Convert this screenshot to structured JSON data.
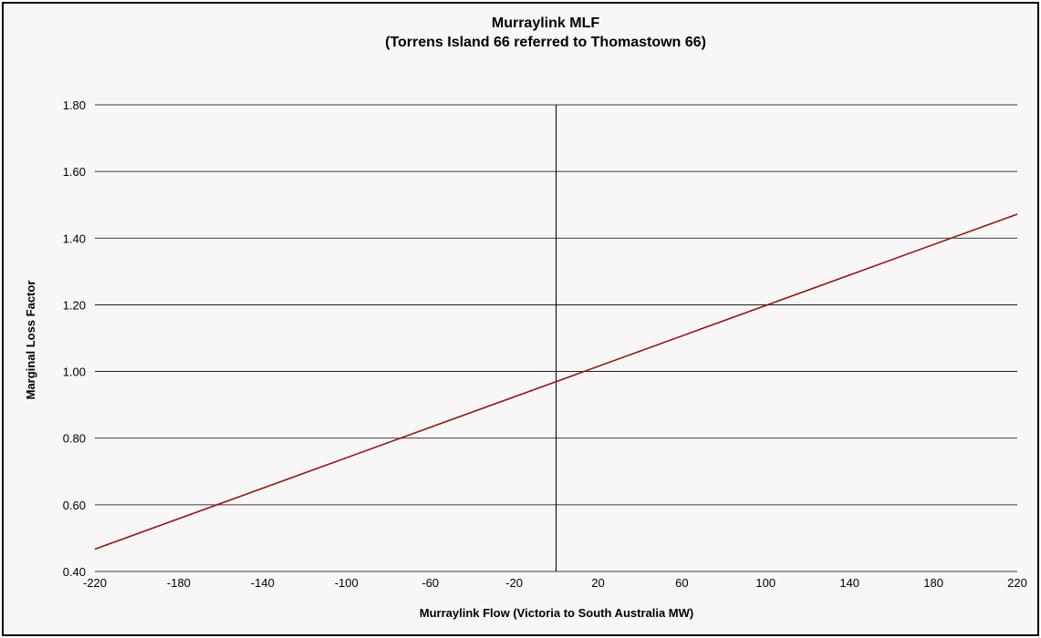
{
  "chart_data": {
    "type": "line",
    "title": "Murraylink MLF",
    "subtitle": "(Torrens Island 66 referred to Thomastown  66)",
    "xlabel": "Murraylink Flow (Victoria to South Australia MW)",
    "ylabel": "Marginal Loss Factor",
    "xlim": [
      -220,
      220
    ],
    "ylim": [
      0.4,
      1.8
    ],
    "x_ticks": [
      "-220",
      "-180",
      "-140",
      "-100",
      "-60",
      "-20",
      "20",
      "60",
      "100",
      "140",
      "180",
      "220"
    ],
    "y_ticks": [
      "0.40",
      "0.60",
      "0.80",
      "1.00",
      "1.20",
      "1.40",
      "1.60",
      "1.80"
    ],
    "grid": "horizontal",
    "reference_line_x": 0,
    "series": [
      {
        "color": "#8b1a1a",
        "x": [
          -220,
          220
        ],
        "y": [
          0.467,
          1.472
        ]
      }
    ]
  }
}
